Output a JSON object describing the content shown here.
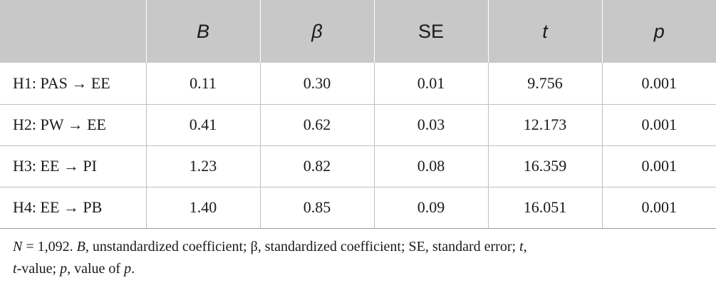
{
  "table": {
    "headers": [
      "",
      "B",
      "β",
      "SE",
      "t",
      "p"
    ],
    "header_italic": [
      false,
      true,
      true,
      false,
      true,
      true
    ],
    "rows": [
      {
        "label": "H1: PAS → EE",
        "cells": [
          "0.11",
          "0.30",
          "0.01",
          "9.756",
          "0.001"
        ]
      },
      {
        "label": "H2: PW → EE",
        "cells": [
          "0.41",
          "0.62",
          "0.03",
          "12.173",
          "0.001"
        ]
      },
      {
        "label": "H3: EE → PI",
        "cells": [
          "1.23",
          "0.82",
          "0.08",
          "16.359",
          "0.001"
        ]
      },
      {
        "label": "H4: EE → PB",
        "cells": [
          "1.40",
          "0.85",
          "0.09",
          "16.051",
          "0.001"
        ]
      }
    ],
    "header_bg": "#c8c8c8"
  },
  "footnote": {
    "n_label": "N",
    "n_value": " = 1,092. ",
    "b_label": "B",
    "b_text": ", unstandardized coefficient; β, standardized coefficient; SE, standard error; ",
    "t_label": "t",
    "t_sep": ",",
    "t_label2": "t",
    "t_text": "-value; ",
    "p_label": "p",
    "p_text": ", value of ",
    "p_label2": "p",
    "end": "."
  }
}
